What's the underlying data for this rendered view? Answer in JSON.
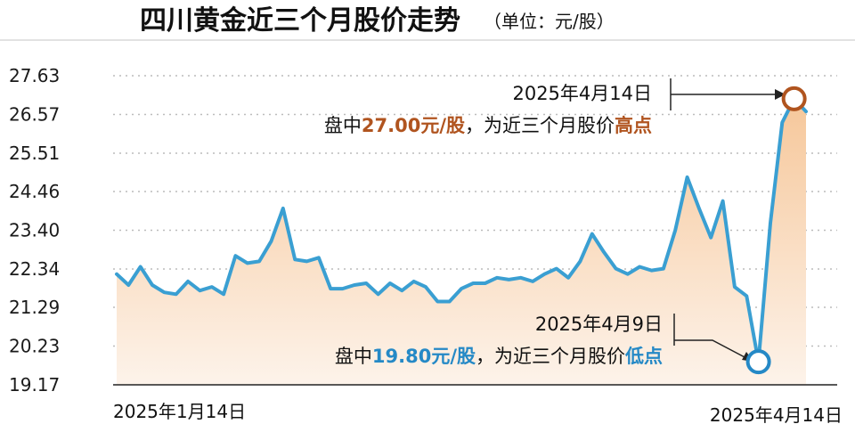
{
  "chart_data": {
    "type": "area",
    "title": "四川黄金近三个月股价走势",
    "unit_label": "（单位：元/股）",
    "yticks": [
      "27.63",
      "26.57",
      "25.51",
      "24.46",
      "23.40",
      "22.34",
      "21.29",
      "20.23",
      "19.17"
    ],
    "ylim": [
      19.17,
      27.63
    ],
    "x_labels": [
      "2025年1月14日",
      "2025年4月14日"
    ],
    "x_start_label": "2025年1月14日",
    "x_end_label": "2025年4月14日",
    "grid": true,
    "values": [
      22.2,
      21.9,
      22.4,
      21.9,
      21.7,
      21.65,
      22.0,
      21.75,
      21.85,
      21.65,
      22.7,
      22.5,
      22.55,
      23.1,
      24.0,
      22.6,
      22.55,
      22.65,
      21.8,
      21.8,
      21.9,
      21.95,
      21.65,
      21.95,
      21.75,
      22.0,
      21.85,
      21.45,
      21.45,
      21.8,
      21.95,
      21.95,
      22.1,
      22.05,
      22.1,
      22.0,
      22.2,
      22.35,
      22.1,
      22.55,
      23.3,
      22.8,
      22.35,
      22.2,
      22.4,
      22.3,
      22.35,
      23.4,
      24.85,
      24.0,
      23.2,
      24.2,
      21.85,
      21.6,
      19.8,
      23.6,
      26.35,
      27.0,
      26.65
    ],
    "low_index": 54,
    "high_index": 57,
    "annotations": {
      "high": {
        "date": "2025年4月14日",
        "prefix": "盘中",
        "price": "27.00元/股",
        "middle": "，为近三个月股价",
        "word": "高点"
      },
      "low": {
        "date": "2025年4月9日",
        "prefix": "盘中",
        "price": "19.80元/股",
        "middle": "，为近三个月股价",
        "word": "低点"
      }
    },
    "colors": {
      "line": "#3a9fd2",
      "fill_top": "#f6c79a",
      "fill_bottom": "#fdf3ea",
      "high": "#b0541f",
      "low": "#2589c6",
      "grid": "#bcbcbc"
    }
  }
}
